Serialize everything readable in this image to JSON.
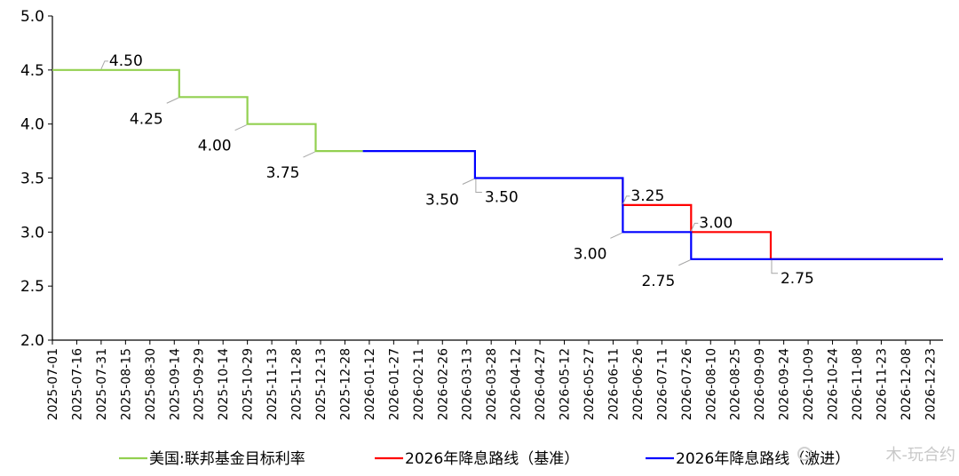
{
  "chart_data": {
    "type": "line",
    "ylim": [
      2.0,
      5.0
    ],
    "y_ticks": [
      "2.0",
      "2.5",
      "3.0",
      "3.5",
      "4.0",
      "4.5",
      "5.0"
    ],
    "x_tick_labels": [
      "2025-07-01",
      "2025-07-16",
      "2025-07-31",
      "2025-08-15",
      "2025-08-30",
      "2025-09-14",
      "2025-09-29",
      "2025-10-14",
      "2025-10-29",
      "2025-11-13",
      "2025-11-28",
      "2025-12-13",
      "2025-12-28",
      "2026-01-12",
      "2026-01-27",
      "2026-02-11",
      "2026-02-26",
      "2026-03-13",
      "2026-03-28",
      "2026-04-12",
      "2026-04-27",
      "2026-05-12",
      "2026-05-27",
      "2026-06-11",
      "2026-06-26",
      "2026-07-11",
      "2026-07-26",
      "2026-08-10",
      "2026-08-25",
      "2026-09-09",
      "2026-09-24",
      "2026-10-09",
      "2026-10-24",
      "2026-11-08",
      "2026-11-23",
      "2026-12-08",
      "2026-12-23"
    ],
    "x_range": [
      "2025-07-01",
      "2026-12-31"
    ],
    "grid": false,
    "legend_position": "bottom",
    "series": [
      {
        "name": "美国:联邦基金目标利率",
        "color": "#92d050",
        "points": [
          [
            "2025-07-01",
            4.5
          ],
          [
            "2025-09-17",
            4.5
          ],
          [
            "2025-09-17",
            4.25
          ],
          [
            "2025-10-29",
            4.25
          ],
          [
            "2025-10-29",
            4.0
          ],
          [
            "2025-12-10",
            4.0
          ],
          [
            "2025-12-10",
            3.75
          ],
          [
            "2026-01-08",
            3.75
          ]
        ]
      },
      {
        "name": "2026年降息路线（基准）",
        "color": "#ff0000",
        "points": [
          [
            "2026-06-17",
            3.5
          ],
          [
            "2026-06-17",
            3.25
          ],
          [
            "2026-07-29",
            3.25
          ],
          [
            "2026-07-29",
            3.0
          ],
          [
            "2026-09-16",
            3.0
          ],
          [
            "2026-09-16",
            2.75
          ],
          [
            "2026-12-31",
            2.75
          ]
        ]
      },
      {
        "name": "2026年降息路线（激进）",
        "color": "#0000ff",
        "points": [
          [
            "2026-01-08",
            3.75
          ],
          [
            "2026-03-18",
            3.75
          ],
          [
            "2026-03-18",
            3.5
          ],
          [
            "2026-06-17",
            3.5
          ],
          [
            "2026-06-17",
            3.0
          ],
          [
            "2026-07-29",
            3.0
          ],
          [
            "2026-07-29",
            2.75
          ],
          [
            "2026-12-31",
            2.75
          ]
        ]
      }
    ],
    "data_labels": [
      {
        "text": "4.50",
        "date": "2025-07-31",
        "value": 4.5,
        "pos": "above-right"
      },
      {
        "text": "4.25",
        "date": "2025-09-17",
        "value": 4.25,
        "pos": "below-left"
      },
      {
        "text": "4.00",
        "date": "2025-10-29",
        "value": 4.0,
        "pos": "below-left"
      },
      {
        "text": "3.75",
        "date": "2025-12-10",
        "value": 3.75,
        "pos": "below-left"
      },
      {
        "text": "3.50",
        "date": "2026-03-18",
        "value": 3.5,
        "pos": "below-left"
      },
      {
        "text": "3.50",
        "date": "2026-03-18",
        "value": 3.5,
        "pos": "below-right"
      },
      {
        "text": "3.25",
        "date": "2026-06-17",
        "value": 3.25,
        "pos": "above-right"
      },
      {
        "text": "3.00",
        "date": "2026-06-17",
        "value": 3.0,
        "pos": "below-left"
      },
      {
        "text": "3.00",
        "date": "2026-07-29",
        "value": 3.0,
        "pos": "above-right"
      },
      {
        "text": "2.75",
        "date": "2026-07-29",
        "value": 2.75,
        "pos": "below-left"
      },
      {
        "text": "2.75",
        "date": "2026-09-16",
        "value": 2.75,
        "pos": "below-right"
      }
    ],
    "watermark": "木-玩合约"
  }
}
